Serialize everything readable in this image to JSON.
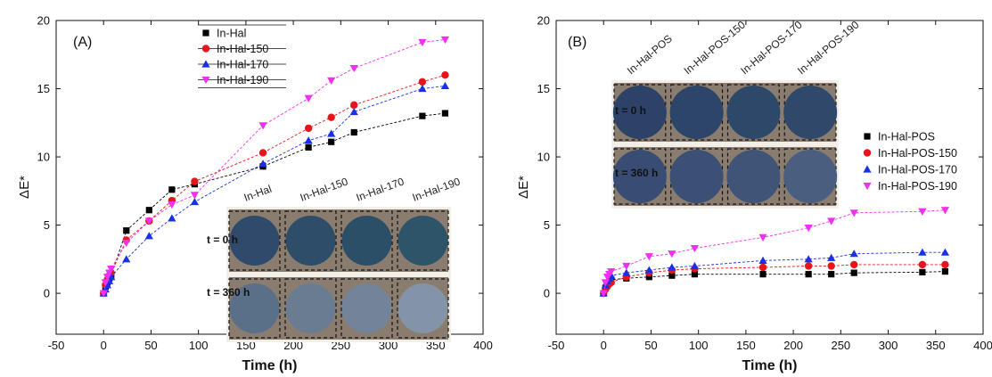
{
  "colors": {
    "series": [
      "#000000",
      "#e8141b",
      "#1930e6",
      "#f030f0"
    ],
    "photo_bg": "#8a7d70",
    "photo_frame": "#f2efe9"
  },
  "chart_data": [
    {
      "type": "scatter",
      "panel_label": "(A)",
      "xlabel": "Time (h)",
      "ylabel": "ΔE*",
      "xlim": [
        -50,
        400
      ],
      "ylim": [
        -3,
        20
      ],
      "xticks": [
        -50,
        0,
        50,
        100,
        150,
        200,
        250,
        300,
        350,
        400
      ],
      "yticks": [
        0,
        5,
        10,
        15,
        20
      ],
      "legend_position": "top-left",
      "x": [
        0,
        2,
        4,
        6,
        8,
        24,
        48,
        72,
        96,
        168,
        216,
        240,
        264,
        336,
        360
      ],
      "series": [
        {
          "name": "In-Hal",
          "marker": "square",
          "values": [
            0,
            0.5,
            0.8,
            1.1,
            1.3,
            4.6,
            6.1,
            7.6,
            8.0,
            9.3,
            10.7,
            11.1,
            11.8,
            13.0,
            13.2
          ]
        },
        {
          "name": "In-Hal-150",
          "marker": "circle",
          "values": [
            0,
            0.6,
            1.0,
            1.3,
            1.5,
            3.9,
            5.3,
            6.8,
            8.2,
            10.3,
            12.1,
            12.9,
            13.8,
            15.5,
            16.0
          ]
        },
        {
          "name": "In-Hal-170",
          "marker": "triangle-up",
          "values": [
            0,
            0.3,
            0.6,
            0.9,
            1.2,
            2.5,
            4.2,
            5.5,
            6.7,
            9.5,
            11.2,
            11.7,
            13.3,
            15.0,
            15.2
          ]
        },
        {
          "name": "In-Hal-190",
          "marker": "triangle-down",
          "values": [
            0,
            0.8,
            1.2,
            1.5,
            1.8,
            3.7,
            5.3,
            6.5,
            7.2,
            12.3,
            14.3,
            15.6,
            16.5,
            18.4,
            18.6
          ]
        }
      ],
      "photo": {
        "columns": [
          "In-Hal",
          "In-Hal-150",
          "In-Hal-170",
          "In-Hal-190"
        ],
        "rows": [
          "t = 0 h",
          "t = 360 h"
        ],
        "disc_colors": [
          [
            "#2f4a6a",
            "#2e4d68",
            "#2b4f66",
            "#2d5468"
          ],
          [
            "#5a6f88",
            "#6a7c92",
            "#72839a",
            "#8494a8"
          ]
        ]
      }
    },
    {
      "type": "scatter",
      "panel_label": "(B)",
      "xlabel": "Time (h)",
      "ylabel": "ΔE*",
      "xlim": [
        -50,
        400
      ],
      "ylim": [
        -3,
        20
      ],
      "xticks": [
        -50,
        0,
        50,
        100,
        150,
        200,
        250,
        300,
        350,
        400
      ],
      "yticks": [
        0,
        5,
        10,
        15,
        20
      ],
      "legend_position": "right",
      "x": [
        0,
        2,
        4,
        6,
        8,
        24,
        48,
        72,
        96,
        168,
        216,
        240,
        264,
        336,
        360
      ],
      "series": [
        {
          "name": "In-Hal-POS",
          "marker": "square",
          "values": [
            0,
            0.4,
            0.7,
            0.9,
            1.0,
            1.1,
            1.2,
            1.3,
            1.4,
            1.4,
            1.4,
            1.4,
            1.5,
            1.55,
            1.6
          ]
        },
        {
          "name": "In-Hal-POS-150",
          "marker": "circle",
          "values": [
            0,
            0.3,
            0.5,
            0.7,
            0.8,
            1.2,
            1.5,
            1.7,
            1.8,
            1.9,
            2.0,
            2.0,
            2.1,
            2.1,
            2.1
          ]
        },
        {
          "name": "In-Hal-POS-170",
          "marker": "triangle-up",
          "values": [
            0,
            0.6,
            0.9,
            1.1,
            1.3,
            1.5,
            1.7,
            1.9,
            2.0,
            2.4,
            2.5,
            2.6,
            2.9,
            3.0,
            3.0
          ]
        },
        {
          "name": "In-Hal-POS-190",
          "marker": "triangle-down",
          "values": [
            0,
            0.8,
            1.2,
            1.4,
            1.6,
            2.0,
            2.7,
            2.9,
            3.3,
            4.1,
            4.8,
            5.3,
            5.9,
            6.0,
            6.1
          ]
        }
      ],
      "photo": {
        "columns": [
          "In-Hal-POS",
          "In-Hal-POS-150",
          "In-Hal-POS-170",
          "In-Hal-POS-190"
        ],
        "rows": [
          "t = 0 h",
          "t = 360 h"
        ],
        "disc_colors": [
          [
            "#2c4266",
            "#2c4568",
            "#2e486a",
            "#30496a"
          ],
          [
            "#384c74",
            "#3c5076",
            "#405478",
            "#4a5e80"
          ]
        ]
      }
    }
  ]
}
